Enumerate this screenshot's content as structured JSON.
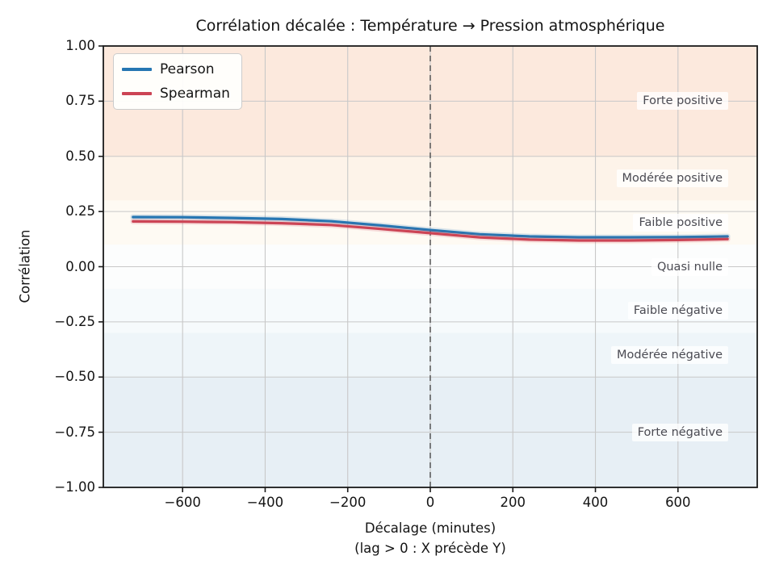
{
  "figure": {
    "xlabel_note": "(lag > 0 : X précède Y)"
  },
  "chart_data": {
    "type": "line",
    "title": "Corrélation décalée : Température → Pression atmosphérique",
    "xlabel": "Décalage (minutes)",
    "ylabel": "Corrélation",
    "xlim": [
      -792,
      792
    ],
    "ylim": [
      -1.0,
      1.0
    ],
    "xticks": [
      -600,
      -400,
      -200,
      0,
      200,
      400,
      600
    ],
    "yticks": [
      1.0,
      0.75,
      0.5,
      0.25,
      0.0,
      -0.25,
      -0.5,
      -0.75,
      -1.0
    ],
    "grid": true,
    "legend_position": "upper left",
    "x": [
      -720,
      -600,
      -480,
      -360,
      -240,
      -120,
      0,
      120,
      240,
      360,
      480,
      600,
      720
    ],
    "series": [
      {
        "name": "Pearson",
        "color": "#2676b2",
        "values": [
          0.225,
          0.224,
          0.221,
          0.216,
          0.206,
          0.187,
          0.166,
          0.147,
          0.137,
          0.133,
          0.133,
          0.134,
          0.137
        ]
      },
      {
        "name": "Spearman",
        "color": "#cc4455",
        "values": [
          0.205,
          0.204,
          0.202,
          0.197,
          0.189,
          0.171,
          0.152,
          0.133,
          0.123,
          0.119,
          0.119,
          0.121,
          0.125
        ]
      }
    ],
    "vline": {
      "x": 0,
      "style": "dashed",
      "color": "#555555"
    },
    "bands": [
      {
        "from": 0.5,
        "to": 1.0,
        "label": "Forte positive",
        "color": "#fce9dd"
      },
      {
        "from": 0.3,
        "to": 0.5,
        "label": "Modérée positive",
        "color": "#fdf3e9"
      },
      {
        "from": 0.1,
        "to": 0.3,
        "label": "Faible positive",
        "color": "#fefaf3"
      },
      {
        "from": -0.1,
        "to": 0.1,
        "label": "Quasi nulle",
        "color": "#fcfdfd"
      },
      {
        "from": -0.3,
        "to": -0.1,
        "label": "Faible négative",
        "color": "#f6fafc"
      },
      {
        "from": -0.5,
        "to": -0.3,
        "label": "Modérée négative",
        "color": "#eef5f9"
      },
      {
        "from": -1.0,
        "to": -0.5,
        "label": "Forte négative",
        "color": "#e7eff5"
      }
    ]
  }
}
